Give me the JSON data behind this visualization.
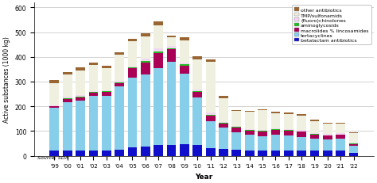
{
  "years": [
    "'99",
    "'00",
    "'01",
    "'02",
    "'03",
    "'04",
    "'05",
    "'06",
    "'07",
    "'08",
    "'09",
    "'10",
    "'11",
    "'12",
    "'13",
    "'14",
    "'15",
    "'16",
    "'17",
    "'18",
    "'19",
    "'20",
    "'21",
    "'22"
  ],
  "betalactam": [
    20,
    20,
    22,
    22,
    22,
    25,
    35,
    38,
    45,
    45,
    48,
    42,
    30,
    28,
    25,
    22,
    22,
    22,
    22,
    22,
    20,
    20,
    20,
    12
  ],
  "tertacyclines": [
    175,
    195,
    200,
    220,
    220,
    255,
    280,
    290,
    310,
    335,
    285,
    195,
    110,
    85,
    70,
    62,
    58,
    62,
    60,
    55,
    50,
    45,
    48,
    28
  ],
  "macrolides": [
    5,
    15,
    15,
    12,
    15,
    15,
    38,
    50,
    60,
    50,
    32,
    22,
    22,
    18,
    20,
    18,
    18,
    20,
    20,
    20,
    16,
    16,
    16,
    8
  ],
  "aminoglycosids": [
    2,
    3,
    3,
    3,
    3,
    3,
    4,
    6,
    8,
    6,
    5,
    4,
    4,
    2,
    2,
    2,
    2,
    2,
    2,
    2,
    2,
    2,
    2,
    1
  ],
  "fluorochinolones": [
    3,
    5,
    5,
    5,
    5,
    5,
    5,
    8,
    10,
    8,
    8,
    6,
    8,
    5,
    5,
    5,
    5,
    5,
    5,
    5,
    5,
    5,
    5,
    3
  ],
  "tmp_sulfonamids": [
    90,
    90,
    100,
    105,
    90,
    105,
    100,
    90,
    95,
    35,
    90,
    120,
    205,
    95,
    60,
    68,
    80,
    60,
    60,
    58,
    48,
    42,
    38,
    38
  ],
  "other": [
    10,
    12,
    12,
    10,
    10,
    10,
    10,
    12,
    15,
    8,
    10,
    15,
    12,
    8,
    4,
    4,
    4,
    6,
    6,
    6,
    4,
    4,
    4,
    4
  ],
  "colors": {
    "betalactam": "#1010cc",
    "tertacyclines": "#87ceeb",
    "macrolides": "#aa0055",
    "aminoglycosids": "#22bb22",
    "fluorochinolones": "#f0d8f0",
    "tmp_sulfonamids": "#f0f0e0",
    "other": "#996633"
  },
  "ylabel": "Active substances (1000 kg)",
  "xlabel": "Year",
  "ylim": [
    0,
    620
  ],
  "yticks": [
    0,
    100,
    200,
    300,
    400,
    500,
    600
  ],
  "source": "Source: SDA"
}
